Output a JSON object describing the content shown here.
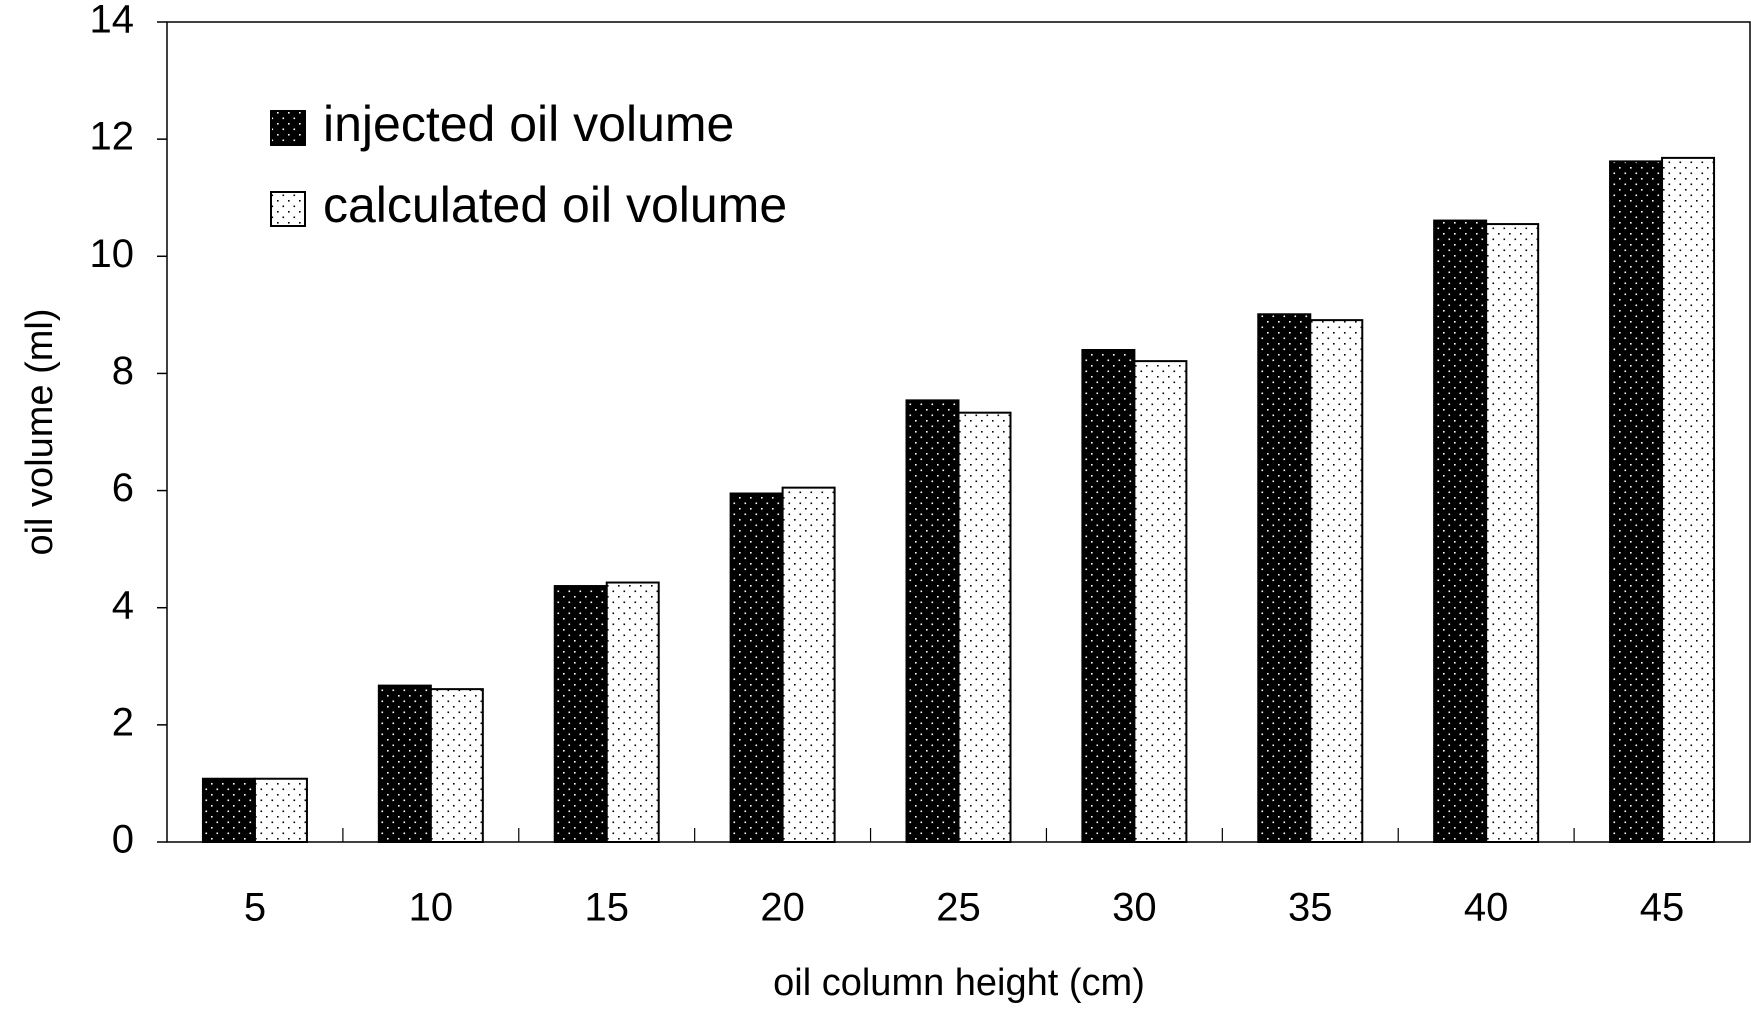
{
  "chart_data": {
    "type": "bar",
    "x_label": "oil column height (cm)",
    "y_label": "oil volume (ml)",
    "categories": [
      "5",
      "10",
      "15",
      "20",
      "25",
      "30",
      "35",
      "40",
      "45"
    ],
    "series": [
      {
        "name": "injected oil volume",
        "color": "#000000",
        "values": [
          1.08,
          2.67,
          4.37,
          5.95,
          7.54,
          8.4,
          9.01,
          10.61,
          11.62
        ]
      },
      {
        "name": "calculated oil volume",
        "color": "#ffffff",
        "values": [
          1.08,
          2.61,
          4.43,
          6.05,
          7.33,
          8.21,
          8.91,
          10.55,
          11.68
        ]
      }
    ],
    "ylim": [
      0,
      14
    ],
    "yticks": [
      0,
      2,
      4,
      6,
      8,
      10,
      12,
      14
    ],
    "grid": false,
    "legend_position": "upper left"
  }
}
